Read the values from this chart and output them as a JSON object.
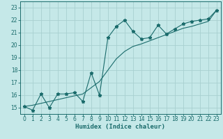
{
  "xlabel": "Humidex (Indice chaleur)",
  "background_color": "#c5e8e8",
  "grid_color": "#a8d0d0",
  "line_color": "#1a6b6b",
  "xlim": [
    -0.5,
    23.5
  ],
  "ylim": [
    14.5,
    23.5
  ],
  "xticks": [
    0,
    1,
    2,
    3,
    4,
    5,
    6,
    7,
    8,
    9,
    10,
    11,
    12,
    13,
    14,
    15,
    16,
    17,
    18,
    19,
    20,
    21,
    22,
    23
  ],
  "yticks": [
    15,
    16,
    17,
    18,
    19,
    20,
    21,
    22,
    23
  ],
  "line1_x": [
    0,
    1,
    2,
    3,
    4,
    5,
    6,
    7,
    8,
    9,
    10,
    11,
    12,
    13,
    14,
    15,
    16,
    17,
    18,
    19,
    20,
    21,
    22,
    23
  ],
  "line1_y": [
    15.1,
    14.8,
    16.1,
    15.0,
    16.1,
    16.1,
    16.2,
    15.5,
    17.8,
    16.0,
    20.6,
    21.5,
    22.0,
    21.1,
    20.5,
    20.6,
    21.6,
    20.9,
    21.3,
    21.7,
    21.9,
    22.0,
    22.1,
    22.8
  ],
  "line2_x": [
    0,
    1,
    2,
    3,
    4,
    5,
    6,
    7,
    8,
    9,
    10,
    11,
    12,
    13,
    14,
    15,
    16,
    17,
    18,
    19,
    20,
    21,
    22,
    23
  ],
  "line2_y": [
    15.1,
    15.2,
    15.35,
    15.5,
    15.65,
    15.8,
    15.95,
    16.1,
    16.6,
    17.1,
    18.0,
    18.9,
    19.5,
    19.9,
    20.1,
    20.35,
    20.6,
    20.85,
    21.1,
    21.35,
    21.5,
    21.7,
    21.9,
    22.8
  ]
}
